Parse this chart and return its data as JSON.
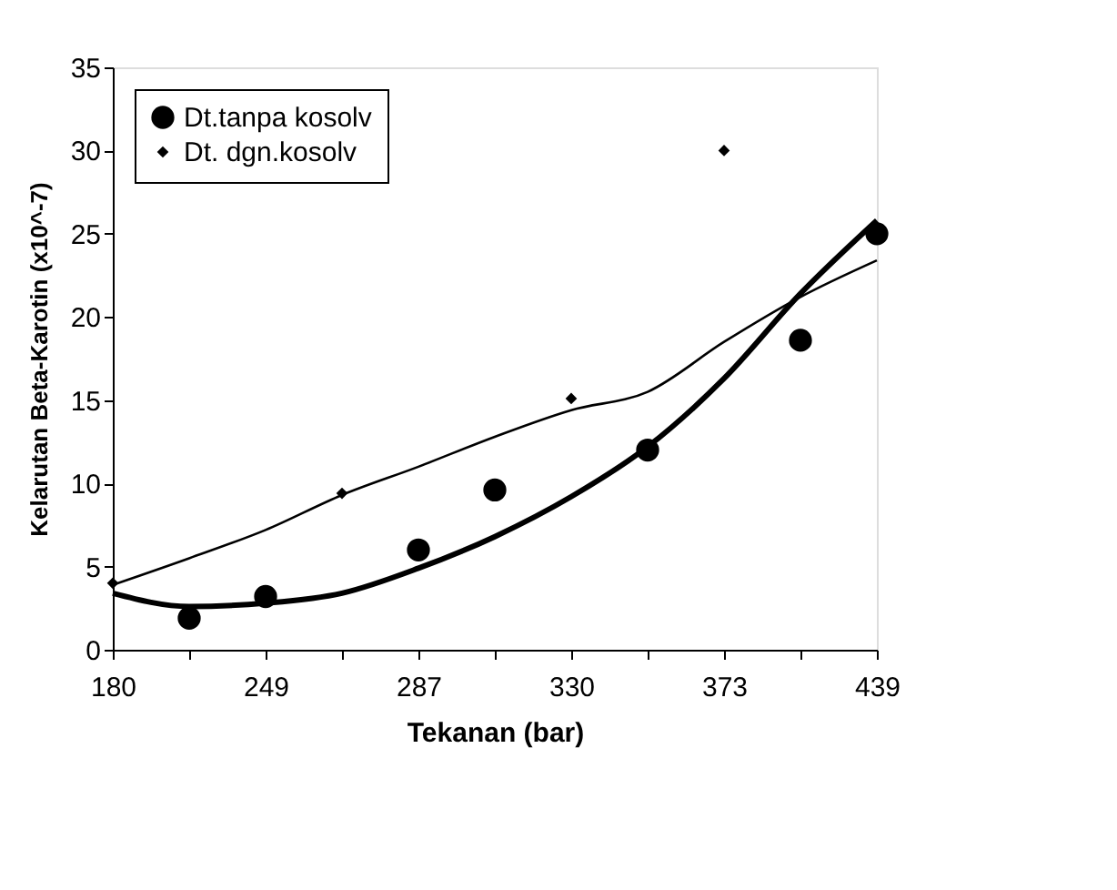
{
  "chart_data": {
    "type": "scatter",
    "xlabel": "Tekanan (bar)",
    "ylabel": "Kelarutan Beta-Karotin (x10^-7)",
    "categories": [
      "180",
      null,
      "249",
      null,
      "287",
      null,
      "330",
      null,
      "373",
      null,
      "439"
    ],
    "ylim": [
      0,
      35
    ],
    "yticks": [
      0,
      5,
      10,
      15,
      20,
      25,
      30,
      35
    ],
    "grid": false,
    "legend": "top left",
    "series": [
      {
        "name": "Dt.tanpa kosolv",
        "marker": "circle",
        "color": "#000000",
        "values": [
          null,
          1.9,
          3.2,
          null,
          6.0,
          9.6,
          null,
          12.0,
          null,
          18.6,
          25.0
        ]
      },
      {
        "name": "Dt. dgn.kosolv",
        "marker": "diamond",
        "color": "#000000",
        "values": [
          4.0,
          null,
          null,
          9.4,
          null,
          null,
          15.1,
          null,
          30.0,
          null,
          null
        ]
      },
      {
        "type": "line",
        "line_style": "solid",
        "marker": "none",
        "color": "#000000",
        "values": [
          3.4,
          2.6,
          2.8,
          3.4,
          4.9,
          6.8,
          9.2,
          12.2,
          16.3,
          21.4,
          25.8
        ]
      },
      {
        "type": "line",
        "line_style": "solid",
        "marker": "none",
        "color": "#000000",
        "values": [
          3.9,
          5.5,
          7.2,
          9.3,
          11.0,
          12.8,
          14.4,
          15.5,
          18.5,
          21.2,
          23.4
        ]
      }
    ]
  }
}
